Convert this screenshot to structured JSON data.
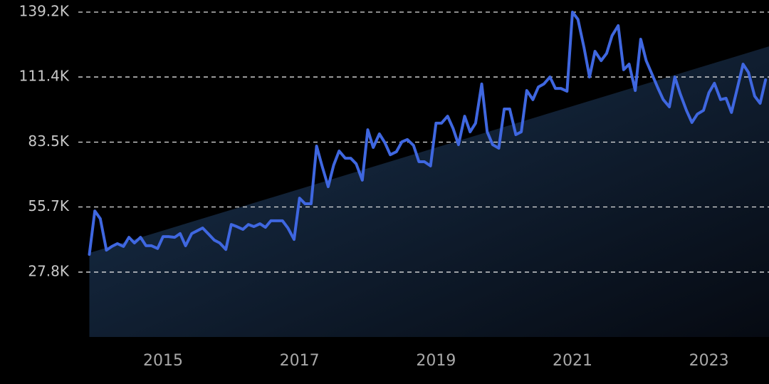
{
  "chart_data": {
    "type": "line",
    "x": [
      2013.92,
      2014.0,
      2014.08,
      2014.17,
      2014.25,
      2014.33,
      2014.42,
      2014.5,
      2014.58,
      2014.67,
      2014.75,
      2014.83,
      2014.92,
      2015.0,
      2015.08,
      2015.17,
      2015.25,
      2015.33,
      2015.42,
      2015.5,
      2015.58,
      2015.67,
      2015.75,
      2015.83,
      2015.92,
      2016.0,
      2016.08,
      2016.17,
      2016.25,
      2016.33,
      2016.42,
      2016.5,
      2016.58,
      2016.67,
      2016.75,
      2016.83,
      2016.92,
      2017.0,
      2017.08,
      2017.17,
      2017.25,
      2017.33,
      2017.42,
      2017.5,
      2017.58,
      2017.67,
      2017.75,
      2017.83,
      2017.92,
      2018.0,
      2018.08,
      2018.17,
      2018.25,
      2018.33,
      2018.42,
      2018.5,
      2018.58,
      2018.67,
      2018.75,
      2018.83,
      2018.92,
      2019.0,
      2019.08,
      2019.17,
      2019.25,
      2019.33,
      2019.42,
      2019.5,
      2019.58,
      2019.67,
      2019.75,
      2019.83,
      2019.92,
      2020.0,
      2020.08,
      2020.17,
      2020.25,
      2020.33,
      2020.42,
      2020.5,
      2020.58,
      2020.67,
      2020.75,
      2020.83,
      2020.92,
      2021.0,
      2021.08,
      2021.17,
      2021.25,
      2021.33,
      2021.42,
      2021.5,
      2021.58,
      2021.67,
      2021.75,
      2021.83,
      2021.92,
      2022.0,
      2022.08,
      2022.17,
      2022.25,
      2022.33,
      2022.42,
      2022.5,
      2022.58,
      2022.67,
      2022.75,
      2022.83,
      2022.92,
      2023.0,
      2023.08,
      2023.17,
      2023.25,
      2023.33,
      2023.42,
      2023.5,
      2023.58,
      2023.67,
      2023.75,
      2023.83
    ],
    "series": [
      {
        "color": "#3f67e0",
        "values": [
          35400,
          54000,
          50700,
          37200,
          38800,
          40000,
          38800,
          42700,
          40300,
          42700,
          39100,
          39100,
          37900,
          43000,
          43000,
          42700,
          44300,
          39100,
          44300,
          45500,
          46700,
          44000,
          41500,
          40300,
          37500,
          48200,
          47300,
          46100,
          48200,
          47300,
          48500,
          47000,
          49800,
          49800,
          49800,
          46700,
          41800,
          59500,
          57100,
          57100,
          81800,
          73300,
          64400,
          73600,
          79700,
          76600,
          76600,
          74200,
          67200,
          88800,
          81200,
          87000,
          83300,
          78100,
          79400,
          83600,
          84600,
          82100,
          75100,
          75100,
          73300,
          91600,
          91600,
          94600,
          89400,
          82400,
          94600,
          87900,
          91600,
          108400,
          87900,
          82400,
          80900,
          97700,
          97700,
          86700,
          87900,
          105600,
          101700,
          107100,
          108400,
          111400,
          106500,
          106500,
          105300,
          139200,
          136100,
          123900,
          111400,
          122400,
          118400,
          121500,
          129100,
          133400,
          114500,
          116900,
          105600,
          127600,
          118400,
          112300,
          106800,
          101700,
          98600,
          111400,
          104100,
          97100,
          91900,
          95500,
          97100,
          104700,
          108700,
          101700,
          102300,
          96200,
          107100,
          116900,
          113300,
          103200,
          100100,
          110200
        ]
      }
    ],
    "trend_area": {
      "x": [
        2013.92,
        2023.88
      ],
      "values": [
        36000,
        124500
      ],
      "color": "#12233a"
    },
    "xlim": [
      2013.8,
      2023.88
    ],
    "xticks": [
      2015,
      2017,
      2019,
      2021,
      2023
    ],
    "ylim": [
      0,
      139200
    ],
    "yticks": [
      {
        "value": 27800,
        "label": "27.8K"
      },
      {
        "value": 55700,
        "label": "55.7K"
      },
      {
        "value": 83500,
        "label": "83.5K"
      },
      {
        "value": 111400,
        "label": "111.4K"
      },
      {
        "value": 139200,
        "label": "139.2K"
      }
    ],
    "grid": true
  }
}
